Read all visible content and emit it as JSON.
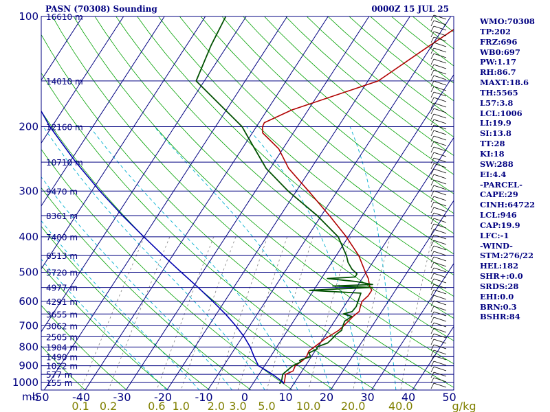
{
  "header": {
    "station": "PASN (70308) Sounding",
    "datetime": "0000Z 15 JUL 25"
  },
  "colors": {
    "isobar": "#000080",
    "isotherm": "#000080",
    "dry_adiabat": "#00a000",
    "moist_adiabat": "#00b0d0",
    "mixing_ratio": "#808080",
    "temperature": "#b00000",
    "dewpoint": "#005000",
    "parcel": "#0000b0",
    "text": "#000080",
    "mixing_label": "#808000",
    "wind": "#000000"
  },
  "chart_data": {
    "type": "skew-t",
    "title": "PASN (70308) Sounding",
    "pressure_axis": {
      "ticks": [
        100,
        200,
        300,
        400,
        500,
        600,
        700,
        800,
        900,
        1000
      ],
      "labels": [
        "100",
        "200",
        "300",
        "400",
        "500",
        "600",
        "700",
        "800",
        "900",
        "1000"
      ],
      "unit": "mb",
      "range": [
        100,
        1050
      ],
      "scale": "log"
    },
    "temperature_axis": {
      "ticks": [
        -50,
        -40,
        -30,
        -20,
        -10,
        0,
        10,
        20,
        30,
        40,
        50
      ],
      "labels": [
        "-50",
        "-40",
        "-30",
        "-20",
        "-10",
        "0",
        "10",
        "20",
        "30",
        "40",
        "50"
      ]
    },
    "mixing_ratio_axis": {
      "values": [
        0.1,
        0.2,
        0.6,
        1.0,
        2.0,
        3.0,
        5.0,
        10.0,
        20.0,
        40.0
      ],
      "labels": [
        "0.1",
        "0.2",
        "0.6",
        "1.0",
        "2.0",
        "3.0",
        "5.0",
        "10.0",
        "20.0",
        "40.0"
      ],
      "unit": "g/kg"
    },
    "height_labels": [
      {
        "p": 100,
        "label": "16610 m"
      },
      {
        "p": 150,
        "label": "14010 m"
      },
      {
        "p": 200,
        "label": "12160 m"
      },
      {
        "p": 250,
        "label": "10710 m"
      },
      {
        "p": 300,
        "label": "9470 m"
      },
      {
        "p": 350,
        "label": "8361 m"
      },
      {
        "p": 400,
        "label": "7400 m"
      },
      {
        "p": 450,
        "label": "6513 m"
      },
      {
        "p": 500,
        "label": "5720 m"
      },
      {
        "p": 550,
        "label": "4977 m"
      },
      {
        "p": 600,
        "label": "4291 m"
      },
      {
        "p": 650,
        "label": "3655 m"
      },
      {
        "p": 700,
        "label": "3062 m"
      },
      {
        "p": 750,
        "label": "2505 m"
      },
      {
        "p": 800,
        "label": "1984 m"
      },
      {
        "p": 850,
        "label": "1490 m"
      },
      {
        "p": 900,
        "label": "1022 m"
      },
      {
        "p": 950,
        "label": "577 m"
      },
      {
        "p": 1000,
        "label": "155 m"
      }
    ],
    "series": [
      {
        "kind": "temperature",
        "points": [
          [
            1008,
            7.5
          ],
          [
            1000,
            7.5
          ],
          [
            950,
            6.5
          ],
          [
            930,
            7.8
          ],
          [
            900,
            7.5
          ],
          [
            870,
            8.5
          ],
          [
            850,
            8.8
          ],
          [
            820,
            8.5
          ],
          [
            800,
            9.2
          ],
          [
            760,
            10.5
          ],
          [
            720,
            12.5
          ],
          [
            700,
            13.0
          ],
          [
            660,
            13.8
          ],
          [
            640,
            14.5
          ],
          [
            620,
            14.0
          ],
          [
            600,
            13.6
          ],
          [
            580,
            14.2
          ],
          [
            560,
            14.2
          ],
          [
            545,
            13.0
          ],
          [
            520,
            11.5
          ],
          [
            500,
            9.8
          ],
          [
            450,
            5.5
          ],
          [
            400,
            -0.5
          ],
          [
            350,
            -8.0
          ],
          [
            300,
            -17.0
          ],
          [
            260,
            -25.5
          ],
          [
            230,
            -31.0
          ],
          [
            208,
            -37.5
          ],
          [
            200,
            -38.5
          ],
          [
            195,
            -38.7
          ],
          [
            180,
            -34.0
          ],
          [
            150,
            -17.5
          ],
          [
            120,
            -10.5
          ],
          [
            100,
            -4.5
          ]
        ]
      },
      {
        "kind": "dewpoint",
        "points": [
          [
            1008,
            6.5
          ],
          [
            1000,
            6.6
          ],
          [
            980,
            6.4
          ],
          [
            950,
            5.8
          ],
          [
            925,
            6.3
          ],
          [
            900,
            6.9
          ],
          [
            880,
            8.2
          ],
          [
            870,
            7.7
          ],
          [
            850,
            9.8
          ],
          [
            830,
            8.8
          ],
          [
            810,
            10.2
          ],
          [
            800,
            9.8
          ],
          [
            780,
            11.8
          ],
          [
            760,
            12.2
          ],
          [
            740,
            12.5
          ],
          [
            720,
            13.2
          ],
          [
            700,
            12.8
          ],
          [
            680,
            12.5
          ],
          [
            660,
            13.5
          ],
          [
            650,
            11.0
          ],
          [
            640,
            12.8
          ],
          [
            620,
            13.0
          ],
          [
            600,
            12.6
          ],
          [
            570,
            12.0
          ],
          [
            560,
            -1.0
          ],
          [
            555,
            6.0
          ],
          [
            550,
            14.0
          ],
          [
            545,
            4.0
          ],
          [
            540,
            13.5
          ],
          [
            530,
            9.0
          ],
          [
            520,
            1.5
          ],
          [
            515,
            8.0
          ],
          [
            505,
            8.0
          ],
          [
            490,
            6.0
          ],
          [
            470,
            4.0
          ],
          [
            450,
            2.5
          ],
          [
            400,
            -2.5
          ],
          [
            350,
            -11.0
          ],
          [
            300,
            -22.0
          ],
          [
            260,
            -31.0
          ],
          [
            220,
            -39.0
          ],
          [
            200,
            -43.5
          ],
          [
            150,
            -62.0
          ],
          [
            120,
            -64.0
          ],
          [
            100,
            -65.0
          ]
        ]
      },
      {
        "kind": "parcel",
        "points": [
          [
            1008,
            7.5
          ],
          [
            1000,
            7.3
          ],
          [
            950,
            3.3
          ],
          [
            900,
            -1.5
          ],
          [
            850,
            -4.0
          ],
          [
            800,
            -6.5
          ],
          [
            750,
            -9.6
          ],
          [
            700,
            -13.4
          ],
          [
            650,
            -17.8
          ],
          [
            600,
            -22.9
          ],
          [
            550,
            -28.7
          ],
          [
            500,
            -35.2
          ],
          [
            450,
            -42.3
          ],
          [
            400,
            -50.0
          ],
          [
            350,
            -58.6
          ],
          [
            300,
            -68.0
          ],
          [
            250,
            -78.5
          ],
          [
            200,
            -90.5
          ],
          [
            150,
            -104.0
          ],
          [
            130,
            -110.0
          ]
        ]
      }
    ],
    "wind_barbs_present": true,
    "grid": true
  },
  "indices": [
    "WMO:70308",
    "TP:202",
    "FRZ:696",
    "WB0:697",
    "PW:1.17",
    "RH:86.7",
    "MAXT:18.6",
    "TH:5565",
    "L57:3.8",
    "LCL:1006",
    "LI:19.9",
    "SI:13.8",
    "TT:28",
    "KI:18",
    "SW:288",
    "EI:4.4",
    "-PARCEL-",
    "CAPE:29",
    "CINH:64722",
    "LCL:946",
    "CAP:19.9",
    "LFC:-1",
    "-WIND-",
    "STM:276/22",
    "HEL:182",
    "SHR+:0.0",
    "SRDS:28",
    "EHI:0.0",
    "BRN:0.3",
    "BSHR:84"
  ]
}
